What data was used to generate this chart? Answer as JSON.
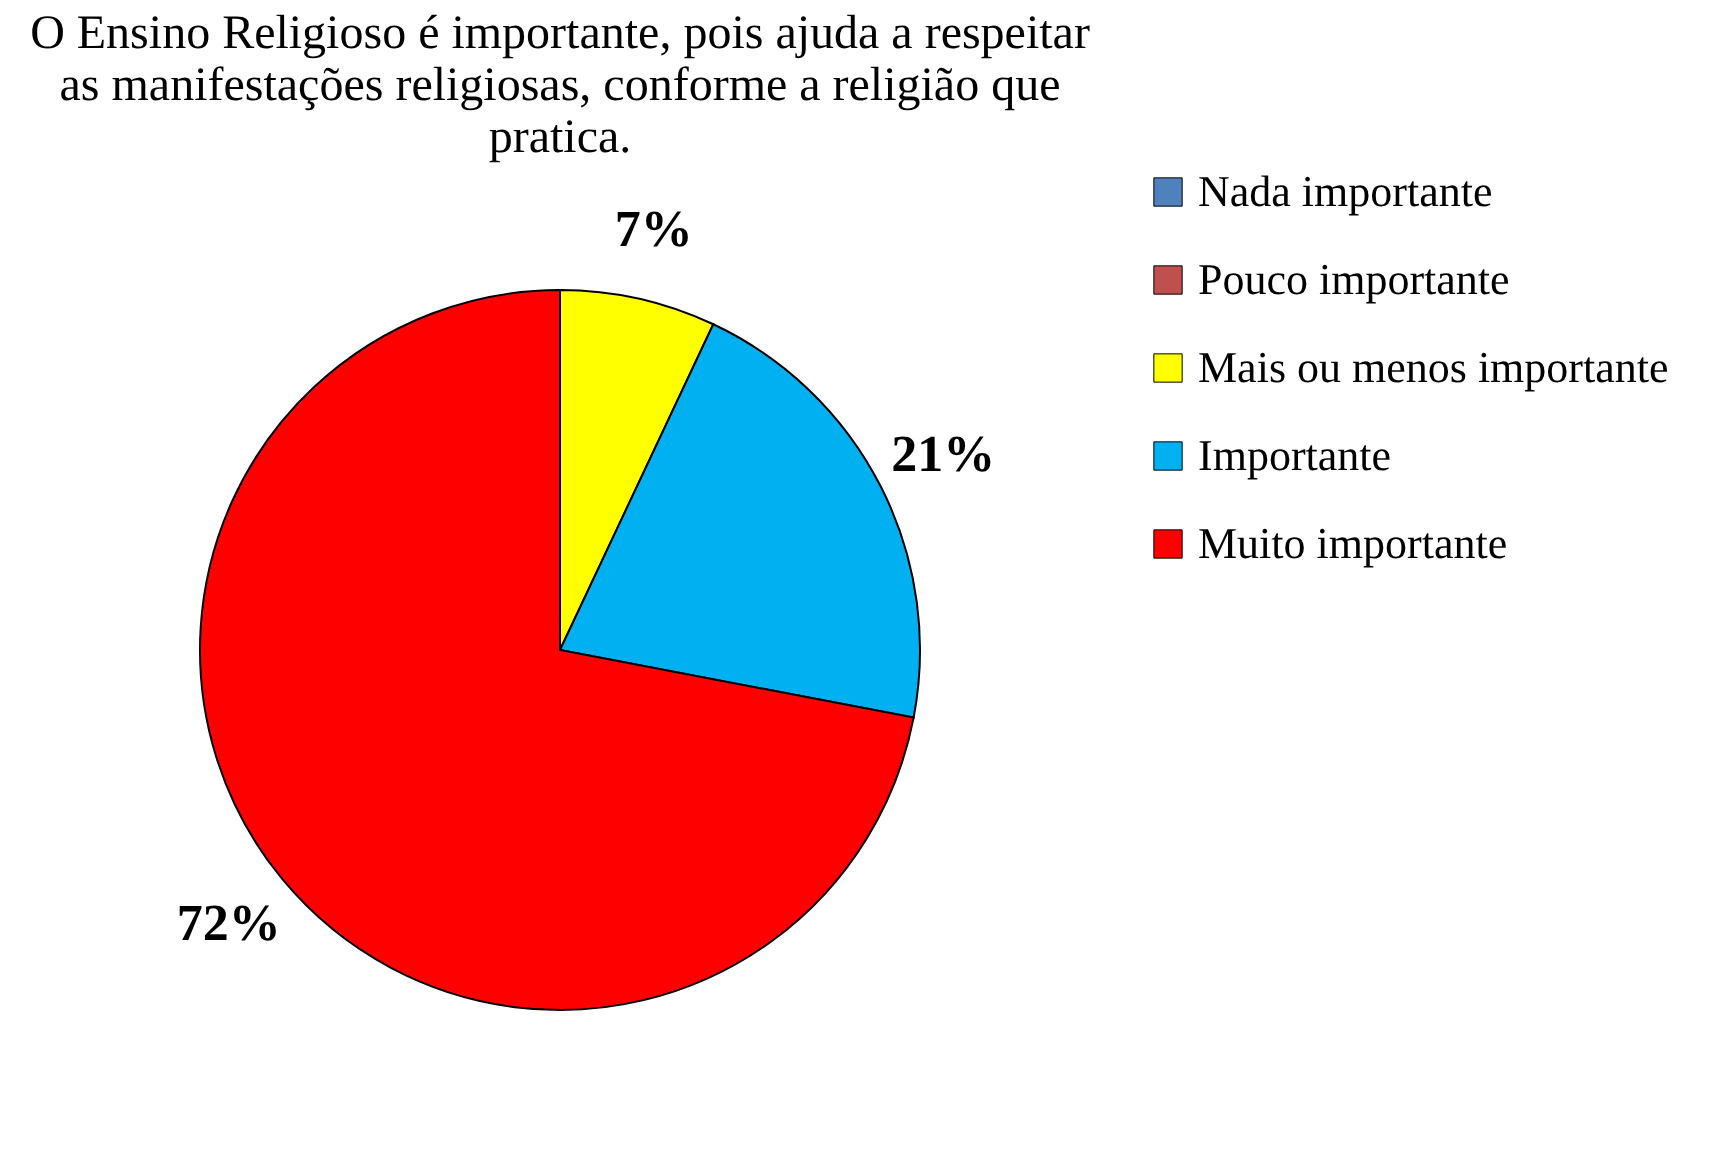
{
  "chart_data": {
    "type": "pie",
    "title": "O Ensino Religioso é importante, pois ajuda a respeitar as manifestações religiosas, conforme a religião que pratica.",
    "categories": [
      "Nada importante",
      "Pouco importante",
      "Mais ou menos importante",
      "Importante",
      "Muito importante"
    ],
    "values": [
      0,
      0,
      7,
      21,
      72
    ],
    "colors": [
      "#4f81bd",
      "#c0504d",
      "#ffff00",
      "#00b0f0",
      "#ff0000"
    ],
    "value_labels": [
      null,
      null,
      "7%",
      "21%",
      "72%"
    ],
    "legend": "right"
  }
}
